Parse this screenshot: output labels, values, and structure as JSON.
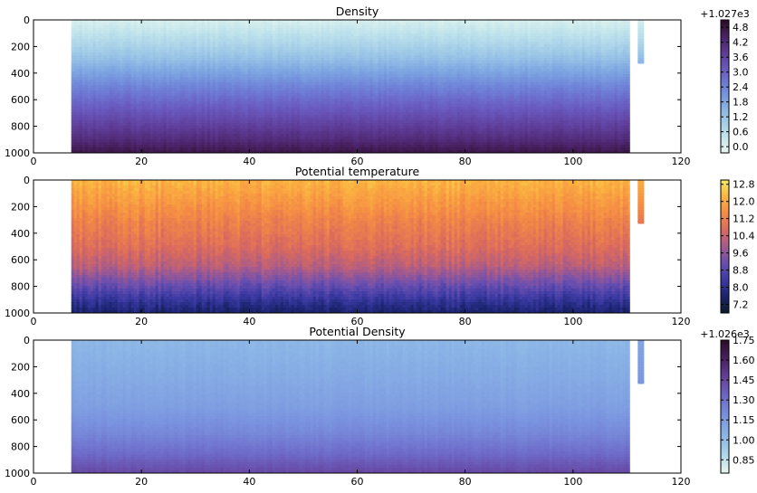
{
  "chart_data": [
    {
      "type": "heatmap",
      "title": "Density",
      "x_ticks": [
        0,
        20,
        40,
        60,
        80,
        100,
        120
      ],
      "y_ticks": [
        0,
        200,
        400,
        600,
        800,
        1000
      ],
      "xlim": [
        0,
        120
      ],
      "ylim": [
        1000,
        0
      ],
      "data_x_extent": [
        7,
        110.5
      ],
      "data_y_extent": [
        0,
        1000
      ],
      "extra_column": {
        "x": 112.5,
        "y_range": [
          0,
          310
        ]
      },
      "colorbar": {
        "ticks": [
          "0.0",
          "0.6",
          "1.2",
          "1.8",
          "2.4",
          "3.0",
          "3.6",
          "4.2",
          "4.8"
        ],
        "range": [
          -0.25,
          5.1
        ],
        "offset_label": "+1.027e3",
        "colors": [
          "#e8f6ef",
          "#bfe3ec",
          "#9ec8e7",
          "#7ea7e2",
          "#6f83d8",
          "#6a5cc2",
          "#5f3e9a",
          "#4b2368",
          "#2e0d2c"
        ]
      },
      "depth_profile": [
        {
          "depth": 0,
          "value": 0.0
        },
        {
          "depth": 120,
          "value": 0.5
        },
        {
          "depth": 300,
          "value": 1.3
        },
        {
          "depth": 500,
          "value": 2.4
        },
        {
          "depth": 700,
          "value": 3.3
        },
        {
          "depth": 900,
          "value": 4.2
        },
        {
          "depth": 1000,
          "value": 4.8
        }
      ]
    },
    {
      "type": "heatmap",
      "title": "Potential temperature",
      "x_ticks": [
        0,
        20,
        40,
        60,
        80,
        100,
        120
      ],
      "y_ticks": [
        0,
        200,
        400,
        600,
        800,
        1000
      ],
      "xlim": [
        0,
        120
      ],
      "ylim": [
        1000,
        0
      ],
      "data_x_extent": [
        7,
        110.5
      ],
      "data_y_extent": [
        0,
        1000
      ],
      "extra_column": {
        "x": 112.5,
        "y_range": [
          0,
          310
        ]
      },
      "colorbar": {
        "ticks": [
          "7.2",
          "8.0",
          "8.8",
          "9.6",
          "10.4",
          "11.2",
          "12.0",
          "12.8"
        ],
        "range": [
          6.8,
          13.0
        ],
        "offset_label": "",
        "colors": [
          "#0d1b2e",
          "#1b2470",
          "#3b3aa3",
          "#6a4fb0",
          "#a35a8e",
          "#d9695f",
          "#f48a45",
          "#fbb040",
          "#f6e55d"
        ]
      },
      "depth_profile": [
        {
          "depth": 0,
          "value": 12.3
        },
        {
          "depth": 150,
          "value": 11.8
        },
        {
          "depth": 300,
          "value": 11.3
        },
        {
          "depth": 500,
          "value": 10.8
        },
        {
          "depth": 650,
          "value": 10.2
        },
        {
          "depth": 800,
          "value": 9.0
        },
        {
          "depth": 900,
          "value": 8.2
        },
        {
          "depth": 1000,
          "value": 7.5
        }
      ]
    },
    {
      "type": "heatmap",
      "title": "Potential Density",
      "x_ticks": [
        0,
        20,
        40,
        60,
        80,
        100,
        120
      ],
      "y_ticks": [
        0,
        200,
        400,
        600,
        800,
        1000
      ],
      "xlim": [
        0,
        120
      ],
      "ylim": [
        1000,
        0
      ],
      "data_x_extent": [
        7,
        110.5
      ],
      "data_y_extent": [
        0,
        1000
      ],
      "extra_column": {
        "x": 112.5,
        "y_range": [
          0,
          310
        ]
      },
      "colorbar": {
        "ticks": [
          "0.85",
          "1.00",
          "1.15",
          "1.30",
          "1.45",
          "1.60",
          "1.75"
        ],
        "range": [
          0.75,
          1.75
        ],
        "offset_label": "+1.026e3",
        "colors": [
          "#e8f6ef",
          "#a9d4ea",
          "#8ab4e6",
          "#7a93df",
          "#6e6bc9",
          "#66449f",
          "#4b2368",
          "#2e0d2c"
        ]
      },
      "depth_profile": [
        {
          "depth": 0,
          "value": 1.02
        },
        {
          "depth": 300,
          "value": 1.08
        },
        {
          "depth": 500,
          "value": 1.13
        },
        {
          "depth": 700,
          "value": 1.22
        },
        {
          "depth": 850,
          "value": 1.32
        },
        {
          "depth": 1000,
          "value": 1.45
        }
      ]
    }
  ]
}
